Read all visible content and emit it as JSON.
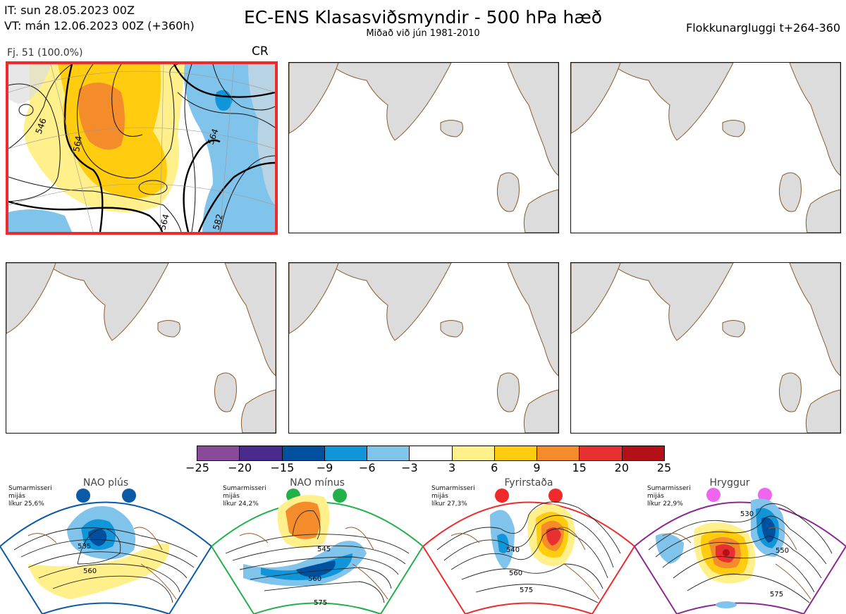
{
  "header": {
    "it": "IT: sun 28.05.2023 00Z",
    "vt": "VT: mán 12.06.2023 00Z  (+360h)",
    "title": "EC-ENS Klasasviðsmyndir - 500 hPa hæð",
    "subtitle": "Miðað við jún 1981-2010",
    "window": "Flokkunargluggi t+264-360"
  },
  "panel1": {
    "label": "Fj. 51 (100.0%)",
    "regime": "CR",
    "contours": [
      "546",
      "564",
      "564",
      "582",
      "564"
    ]
  },
  "colorbar": {
    "colors": [
      "#8a4a9a",
      "#4a2a8a",
      "#0050a0",
      "#1096d8",
      "#80c4ec",
      "#ffffff",
      "#fff08c",
      "#ffcc10",
      "#f48c2c",
      "#e83030",
      "#b41018"
    ],
    "ticks": [
      "−25",
      "−20",
      "−15",
      "−9",
      "−6",
      "−3",
      "3",
      "6",
      "9",
      "15",
      "20",
      "25"
    ]
  },
  "clusters": [
    {
      "name": "NAO plús",
      "season": "Sumarmisseri",
      "mean": "mijás",
      "prob": "líkur 25,6%",
      "color": "#0b5aa6",
      "contours": [
        "535",
        "560"
      ]
    },
    {
      "name": "NAO mínus",
      "season": "Sumarmisseri",
      "mean": "mijás",
      "prob": "líkur 24,2%",
      "color": "#22b04a",
      "contours": [
        "545",
        "560",
        "575"
      ]
    },
    {
      "name": "Fyrirstaða",
      "season": "Sumarmisseri",
      "mean": "mijás",
      "prob": "líkur 27,3%",
      "color": "#ee2a2a",
      "contours": [
        "540",
        "560",
        "575"
      ]
    },
    {
      "name": "Hryggur",
      "season": "Sumarmisseri",
      "mean": "mijás",
      "prob": "líkur 22,9%",
      "color": "#8b2a8e",
      "dotcolor": "#ee66ee",
      "contours": [
        "530",
        "550",
        "575"
      ]
    }
  ]
}
